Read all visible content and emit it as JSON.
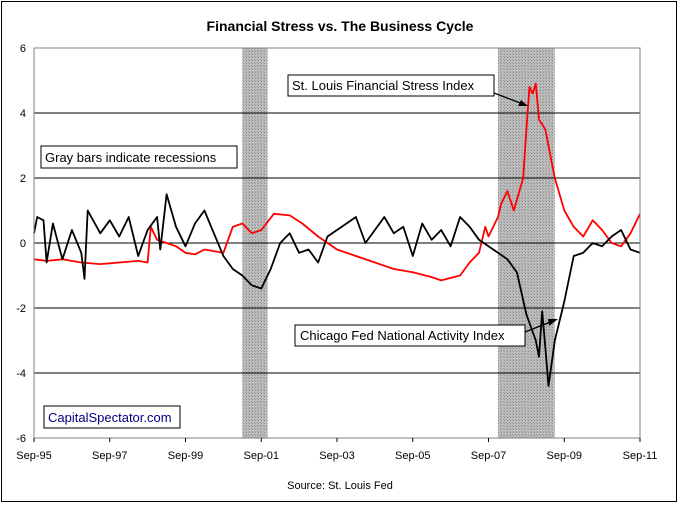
{
  "chart_data": {
    "type": "line",
    "title": "Financial Stress vs. The Business Cycle",
    "source": "Source: St. Louis Fed",
    "ylim": [
      -6,
      6
    ],
    "yticks": [
      -6,
      -4,
      -2,
      0,
      2,
      4,
      6
    ],
    "xlim": [
      "1995-09",
      "2011-09"
    ],
    "xticks": [
      "Sep-95",
      "Sep-97",
      "Sep-99",
      "Sep-01",
      "Sep-03",
      "Sep-05",
      "Sep-07",
      "Sep-09",
      "Sep-11"
    ],
    "grid": true,
    "recessions": [
      {
        "start": "2001-03",
        "end": "2001-11"
      },
      {
        "start": "2007-12",
        "end": "2009-06"
      }
    ],
    "annotations": {
      "recession_note": "Gray bars indicate recessions",
      "watermark": "CapitalSpectator.com",
      "stress_label": "St. Louis Financial Stress Index",
      "cfnai_label": "Chicago Fed National Activity Index"
    },
    "series": [
      {
        "name": "St. Louis Financial Stress Index",
        "color": "#ff0000",
        "points": [
          [
            "1995-09",
            -0.5
          ],
          [
            "1996-01",
            -0.55
          ],
          [
            "1996-06",
            -0.5
          ],
          [
            "1996-12",
            -0.6
          ],
          [
            "1997-06",
            -0.65
          ],
          [
            "1997-12",
            -0.6
          ],
          [
            "1998-06",
            -0.55
          ],
          [
            "1998-09",
            -0.6
          ],
          [
            "1998-10",
            0.5
          ],
          [
            "1998-12",
            0.1
          ],
          [
            "1999-03",
            0.0
          ],
          [
            "1999-06",
            -0.1
          ],
          [
            "1999-09",
            -0.3
          ],
          [
            "1999-12",
            -0.35
          ],
          [
            "2000-03",
            -0.2
          ],
          [
            "2000-09",
            -0.3
          ],
          [
            "2000-12",
            0.5
          ],
          [
            "2001-03",
            0.6
          ],
          [
            "2001-06",
            0.3
          ],
          [
            "2001-09",
            0.4
          ],
          [
            "2002-01",
            0.9
          ],
          [
            "2002-06",
            0.85
          ],
          [
            "2002-10",
            0.6
          ],
          [
            "2003-03",
            0.2
          ],
          [
            "2003-09",
            -0.2
          ],
          [
            "2004-03",
            -0.4
          ],
          [
            "2004-09",
            -0.6
          ],
          [
            "2005-03",
            -0.8
          ],
          [
            "2005-09",
            -0.9
          ],
          [
            "2006-03",
            -1.05
          ],
          [
            "2006-06",
            -1.15
          ],
          [
            "2006-12",
            -1.0
          ],
          [
            "2007-03",
            -0.6
          ],
          [
            "2007-06",
            -0.3
          ],
          [
            "2007-08",
            0.5
          ],
          [
            "2007-09",
            0.2
          ],
          [
            "2007-12",
            0.8
          ],
          [
            "2008-01",
            1.2
          ],
          [
            "2008-03",
            1.6
          ],
          [
            "2008-05",
            1.0
          ],
          [
            "2008-08",
            2.0
          ],
          [
            "2008-09",
            3.5
          ],
          [
            "2008-10",
            4.8
          ],
          [
            "2008-11",
            4.6
          ],
          [
            "2008-12",
            4.9
          ],
          [
            "2009-01",
            3.8
          ],
          [
            "2009-03",
            3.5
          ],
          [
            "2009-06",
            2.0
          ],
          [
            "2009-09",
            1.0
          ],
          [
            "2009-12",
            0.5
          ],
          [
            "2010-03",
            0.2
          ],
          [
            "2010-06",
            0.7
          ],
          [
            "2010-09",
            0.4
          ],
          [
            "2010-12",
            0.0
          ],
          [
            "2011-03",
            -0.1
          ],
          [
            "2011-06",
            0.3
          ],
          [
            "2011-09",
            0.9
          ]
        ]
      },
      {
        "name": "Chicago Fed National Activity Index",
        "color": "#000000",
        "points": [
          [
            "1995-09",
            0.3
          ],
          [
            "1995-10",
            0.8
          ],
          [
            "1995-12",
            0.7
          ],
          [
            "1996-01",
            -0.6
          ],
          [
            "1996-03",
            0.6
          ],
          [
            "1996-06",
            -0.5
          ],
          [
            "1996-09",
            0.4
          ],
          [
            "1996-12",
            -0.3
          ],
          [
            "1997-01",
            -1.1
          ],
          [
            "1997-02",
            1.0
          ],
          [
            "1997-06",
            0.3
          ],
          [
            "1997-09",
            0.7
          ],
          [
            "1997-12",
            0.2
          ],
          [
            "1998-03",
            0.8
          ],
          [
            "1998-06",
            -0.4
          ],
          [
            "1998-09",
            0.4
          ],
          [
            "1998-12",
            0.8
          ],
          [
            "1999-01",
            -0.2
          ],
          [
            "1999-03",
            1.5
          ],
          [
            "1999-06",
            0.5
          ],
          [
            "1999-09",
            -0.1
          ],
          [
            "1999-12",
            0.6
          ],
          [
            "2000-03",
            1.0
          ],
          [
            "2000-06",
            0.3
          ],
          [
            "2000-09",
            -0.4
          ],
          [
            "2000-12",
            -0.8
          ],
          [
            "2001-03",
            -1.0
          ],
          [
            "2001-06",
            -1.3
          ],
          [
            "2001-09",
            -1.4
          ],
          [
            "2001-12",
            -0.8
          ],
          [
            "2002-03",
            0.0
          ],
          [
            "2002-06",
            0.3
          ],
          [
            "2002-09",
            -0.3
          ],
          [
            "2002-12",
            -0.2
          ],
          [
            "2003-03",
            -0.6
          ],
          [
            "2003-06",
            0.2
          ],
          [
            "2003-09",
            0.4
          ],
          [
            "2003-12",
            0.6
          ],
          [
            "2004-03",
            0.8
          ],
          [
            "2004-06",
            0.0
          ],
          [
            "2004-09",
            0.4
          ],
          [
            "2004-12",
            0.8
          ],
          [
            "2005-03",
            0.3
          ],
          [
            "2005-06",
            0.5
          ],
          [
            "2005-09",
            -0.4
          ],
          [
            "2005-12",
            0.6
          ],
          [
            "2006-03",
            0.1
          ],
          [
            "2006-06",
            0.4
          ],
          [
            "2006-09",
            -0.1
          ],
          [
            "2006-12",
            0.8
          ],
          [
            "2007-03",
            0.5
          ],
          [
            "2007-06",
            0.1
          ],
          [
            "2007-09",
            -0.1
          ],
          [
            "2007-12",
            -0.3
          ],
          [
            "2008-03",
            -0.5
          ],
          [
            "2008-06",
            -0.9
          ],
          [
            "2008-09",
            -2.2
          ],
          [
            "2008-12",
            -3.0
          ],
          [
            "2009-01",
            -3.5
          ],
          [
            "2009-02",
            -2.1
          ],
          [
            "2009-03",
            -3.2
          ],
          [
            "2009-04",
            -4.4
          ],
          [
            "2009-06",
            -3.0
          ],
          [
            "2009-09",
            -1.8
          ],
          [
            "2009-12",
            -0.4
          ],
          [
            "2010-03",
            -0.3
          ],
          [
            "2010-06",
            0.0
          ],
          [
            "2010-09",
            -0.1
          ],
          [
            "2010-12",
            0.2
          ],
          [
            "2011-03",
            0.4
          ],
          [
            "2011-06",
            -0.2
          ],
          [
            "2011-09",
            -0.3
          ]
        ]
      }
    ]
  }
}
